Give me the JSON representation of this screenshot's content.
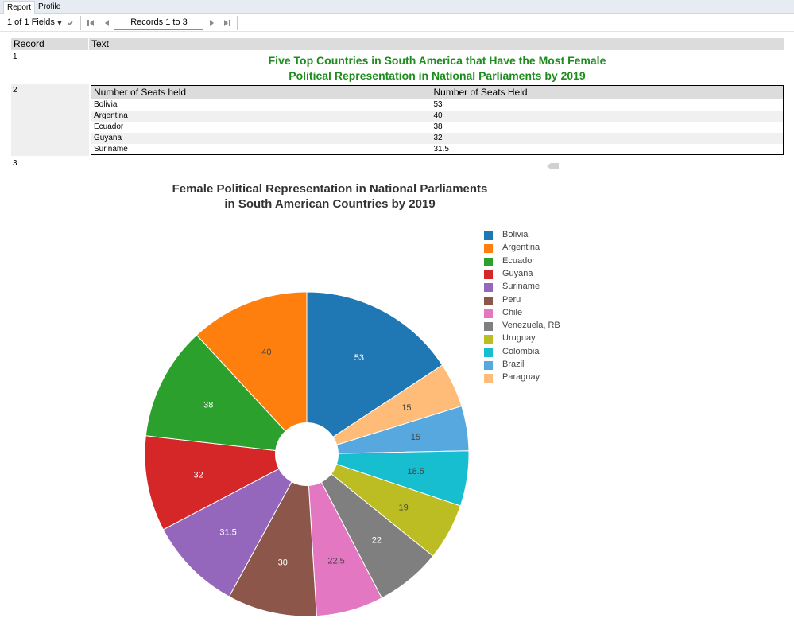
{
  "tabs": [
    "Report",
    "Profile"
  ],
  "toolbar": {
    "fields_label": "1 of 1 Fields",
    "records_label": "Records 1 to 3"
  },
  "grid": {
    "header_record": "Record",
    "header_text": "Text",
    "record_numbers": [
      "1",
      "2",
      "3"
    ]
  },
  "report_title": {
    "line1": "Five Top Countries in South America that Have the Most Female",
    "line2": "Political Representation in National Parliaments by 2019"
  },
  "table": {
    "headers": [
      "Number of Seats held",
      "Number of Seats Held"
    ],
    "rows": [
      [
        "Bolivia",
        "53"
      ],
      [
        "Argentina",
        "40"
      ],
      [
        "Ecuador",
        "38"
      ],
      [
        "Guyana",
        "32"
      ],
      [
        "Suriname",
        "31.5"
      ]
    ]
  },
  "chart_data": {
    "type": "pie",
    "title_line1": "Female Political Representation in National Parliaments",
    "title_line2": "in South American Countries by 2019",
    "legend_position": "right",
    "hole": true,
    "slices": [
      {
        "label": "Bolivia",
        "value": 53,
        "color": "#1f77b4"
      },
      {
        "label": "Paraguay",
        "value": 15,
        "color": "#ffbb78"
      },
      {
        "label": "Brazil",
        "value": 15,
        "color": "#58a8e0"
      },
      {
        "label": "Colombia",
        "value": 18.5,
        "color": "#17becf"
      },
      {
        "label": "Uruguay",
        "value": 19,
        "color": "#bcbd22"
      },
      {
        "label": "Venezuela, RB",
        "value": 22,
        "color": "#7f7f7f"
      },
      {
        "label": "Chile",
        "value": 22.5,
        "color": "#e377c2"
      },
      {
        "label": "Peru",
        "value": 30,
        "color": "#8c564b"
      },
      {
        "label": "Suriname",
        "value": 31.5,
        "color": "#9467bd"
      },
      {
        "label": "Guyana",
        "value": 32,
        "color": "#d62728"
      },
      {
        "label": "Ecuador",
        "value": 38,
        "color": "#2ca02c"
      },
      {
        "label": "Argentina",
        "value": 40,
        "color": "#ff7f0e"
      }
    ],
    "legend": [
      {
        "label": "Bolivia",
        "color": "#1f77b4"
      },
      {
        "label": "Argentina",
        "color": "#ff7f0e"
      },
      {
        "label": "Ecuador",
        "color": "#2ca02c"
      },
      {
        "label": "Guyana",
        "color": "#d62728"
      },
      {
        "label": "Suriname",
        "color": "#9467bd"
      },
      {
        "label": "Peru",
        "color": "#8c564b"
      },
      {
        "label": "Chile",
        "color": "#e377c2"
      },
      {
        "label": "Venezuela, RB",
        "color": "#7f7f7f"
      },
      {
        "label": "Uruguay",
        "color": "#bcbd22"
      },
      {
        "label": "Colombia",
        "color": "#17becf"
      },
      {
        "label": "Brazil",
        "color": "#58a8e0"
      },
      {
        "label": "Paraguay",
        "color": "#ffbb78"
      }
    ]
  }
}
